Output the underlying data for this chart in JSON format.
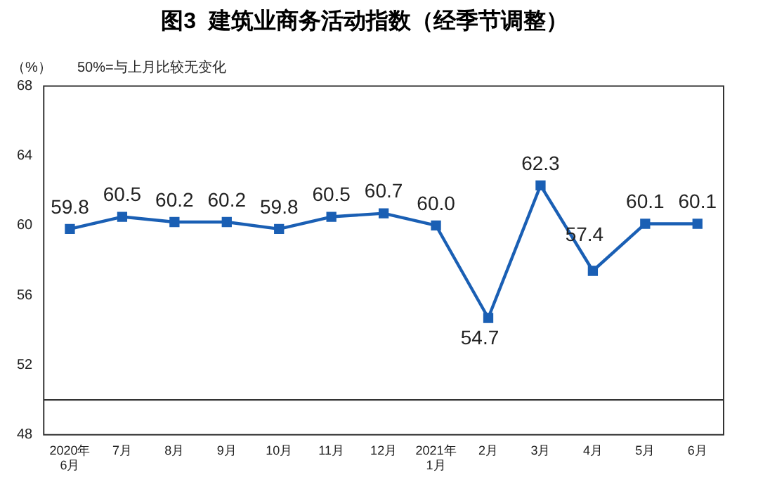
{
  "chart_data": {
    "type": "line",
    "title": "图3  建筑业商务活动指数（经季节调整）",
    "ylabel": "（%）",
    "categories": [
      "2020年\n6月",
      "7月",
      "8月",
      "9月",
      "10月",
      "11月",
      "12月",
      "2021年\n1月",
      "2月",
      "3月",
      "4月",
      "5月",
      "6月"
    ],
    "series": [
      {
        "color": "#1a5fb4",
        "values": [
          59.8,
          60.5,
          60.2,
          60.2,
          59.8,
          60.5,
          60.7,
          60.0,
          54.7,
          62.3,
          57.4,
          60.1,
          60.1
        ]
      }
    ],
    "ylim": [
      48,
      68
    ],
    "yticks": [
      48,
      52,
      56,
      60,
      64,
      68
    ],
    "value_labels": [
      "59.8",
      "60.5",
      "60.2",
      "60.2",
      "59.8",
      "60.5",
      "60.7",
      "60.0",
      "54.7",
      "62.3",
      "57.4",
      "60.1",
      "60.1"
    ],
    "grid": false,
    "legend": false,
    "marker": "square",
    "line_style": "solid",
    "ref_lines": [
      {
        "axis": "y",
        "value": 50,
        "label": "50%=与上月比较无变化",
        "color": "#333333"
      }
    ]
  }
}
